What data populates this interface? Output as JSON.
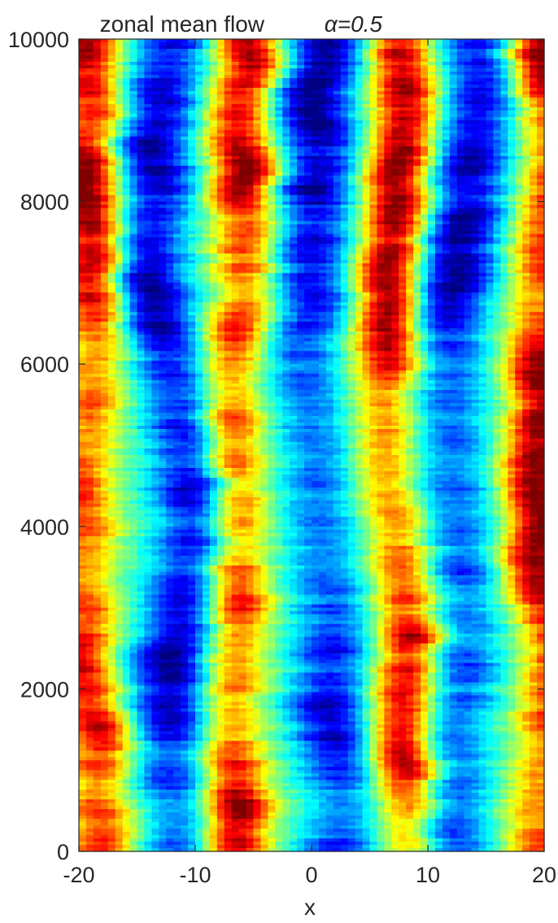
{
  "chart_data": {
    "type": "heatmap",
    "title": "zonal mean flow",
    "title_math": "α=0.5",
    "xlabel": "x",
    "ylabel": "",
    "xlim": [
      -20,
      20
    ],
    "ylim": [
      0,
      10000
    ],
    "x_ticks": [
      -20,
      -10,
      0,
      10,
      20
    ],
    "y_ticks": [
      0,
      2000,
      4000,
      6000,
      8000,
      10000
    ],
    "x_tick_labels": [
      "-20",
      "-10",
      "0",
      "10",
      "20"
    ],
    "y_tick_labels": [
      "0",
      "2000",
      "4000",
      "6000",
      "8000",
      "10000"
    ],
    "colormap": "jet",
    "grid": false,
    "field": {
      "description_of_structure": "zonal jets: high (red) bands near x≈-19, x≈-5.5, x≈7.5, x≈19.5; low (blue) bands near x≈-12, x≈1, x≈14; bands fluctuate over time",
      "high_centers_x": [
        -19.5,
        -5.5,
        7.5,
        19.5
      ],
      "low_centers_x": [
        -12,
        1,
        14
      ]
    }
  },
  "colors": {
    "axis": "#262626",
    "background": "#ffffff"
  }
}
